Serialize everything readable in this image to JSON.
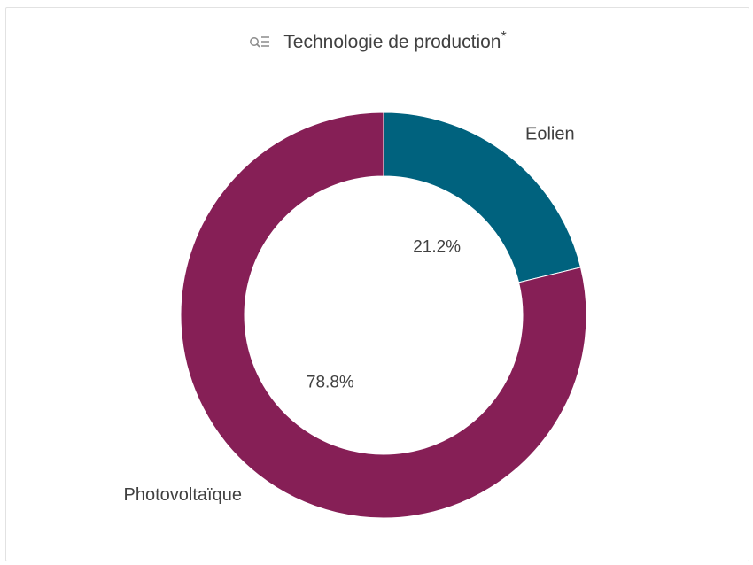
{
  "header": {
    "title": "Technologie de production",
    "title_marker": "*",
    "filter_icon": "filter-search-icon"
  },
  "chart_data": {
    "type": "pie",
    "donut": true,
    "title": "Technologie de production*",
    "start_angle_deg": 0,
    "direction": "clockwise",
    "slices": [
      {
        "label": "Eolien",
        "value": 21.2,
        "value_label": "21.2%",
        "color": "#00627e"
      },
      {
        "label": "Photovoltaïque",
        "value": 78.8,
        "value_label": "78.8%",
        "color": "#861f56"
      }
    ]
  }
}
